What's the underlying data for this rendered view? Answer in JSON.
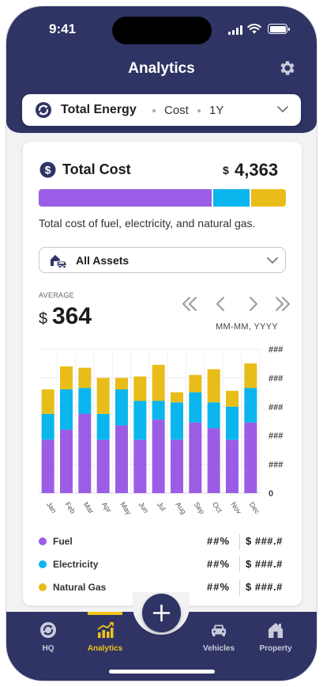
{
  "status_bar": {
    "time": "9:41"
  },
  "header": {
    "title": "Analytics"
  },
  "selector": {
    "metric": "Total Energy",
    "measure": "Cost",
    "period": "1Y"
  },
  "cost_card": {
    "title": "Total Cost",
    "currency": "$",
    "total": "4,363",
    "description": "Total cost of fuel, electricity, and natural gas.",
    "breakdown_fraction": {
      "fuel": 0.71,
      "electricity": 0.15,
      "natural_gas": 0.14
    }
  },
  "assets_dropdown": {
    "label": "All Assets"
  },
  "average": {
    "label": "AVERAGE",
    "currency": "$",
    "value": "364",
    "date_range": "MM-MM, YYYY"
  },
  "colors": {
    "fuel": "#9b5de5",
    "electricity": "#0bb5ee",
    "natural_gas": "#e8bd1a",
    "navy": "#2f3464",
    "active_tab": "#f0c419"
  },
  "chart_data": {
    "type": "bar",
    "stacked": true,
    "categories": [
      "Jan",
      "Feb",
      "Mar",
      "Apr",
      "May",
      "Jun",
      "Jul",
      "Aug",
      "Sep",
      "Oct",
      "Nov",
      "Dec"
    ],
    "series": [
      {
        "name": "Fuel",
        "values": [
          37,
          44,
          55,
          37,
          47,
          37,
          51,
          37,
          49,
          45,
          37,
          49
        ]
      },
      {
        "name": "Electricity",
        "values": [
          18,
          28,
          18,
          18,
          25,
          27,
          13,
          26,
          21,
          18,
          23,
          24
        ]
      },
      {
        "name": "Natural Gas",
        "values": [
          17,
          16,
          14,
          25,
          8,
          17,
          25,
          7,
          12,
          23,
          11,
          17
        ]
      }
    ],
    "ylim": [
      0,
      100
    ],
    "y_ticks": [
      "0",
      "###",
      "###",
      "###",
      "###",
      "###"
    ],
    "grid": true,
    "legend_position": "bottom"
  },
  "legend": [
    {
      "name": "Fuel",
      "percent": "##%",
      "value": "$ ###.#"
    },
    {
      "name": "Electricity",
      "percent": "##%",
      "value": "$ ###.#"
    },
    {
      "name": "Natural Gas",
      "percent": "##%",
      "value": "$ ###.#"
    }
  ],
  "tabs": [
    {
      "label": "HQ",
      "icon": "hq-icon"
    },
    {
      "label": "Analytics",
      "icon": "analytics-icon",
      "active": true
    },
    {
      "label": "Vehicles",
      "icon": "car-icon"
    },
    {
      "label": "Property",
      "icon": "house-icon"
    }
  ]
}
